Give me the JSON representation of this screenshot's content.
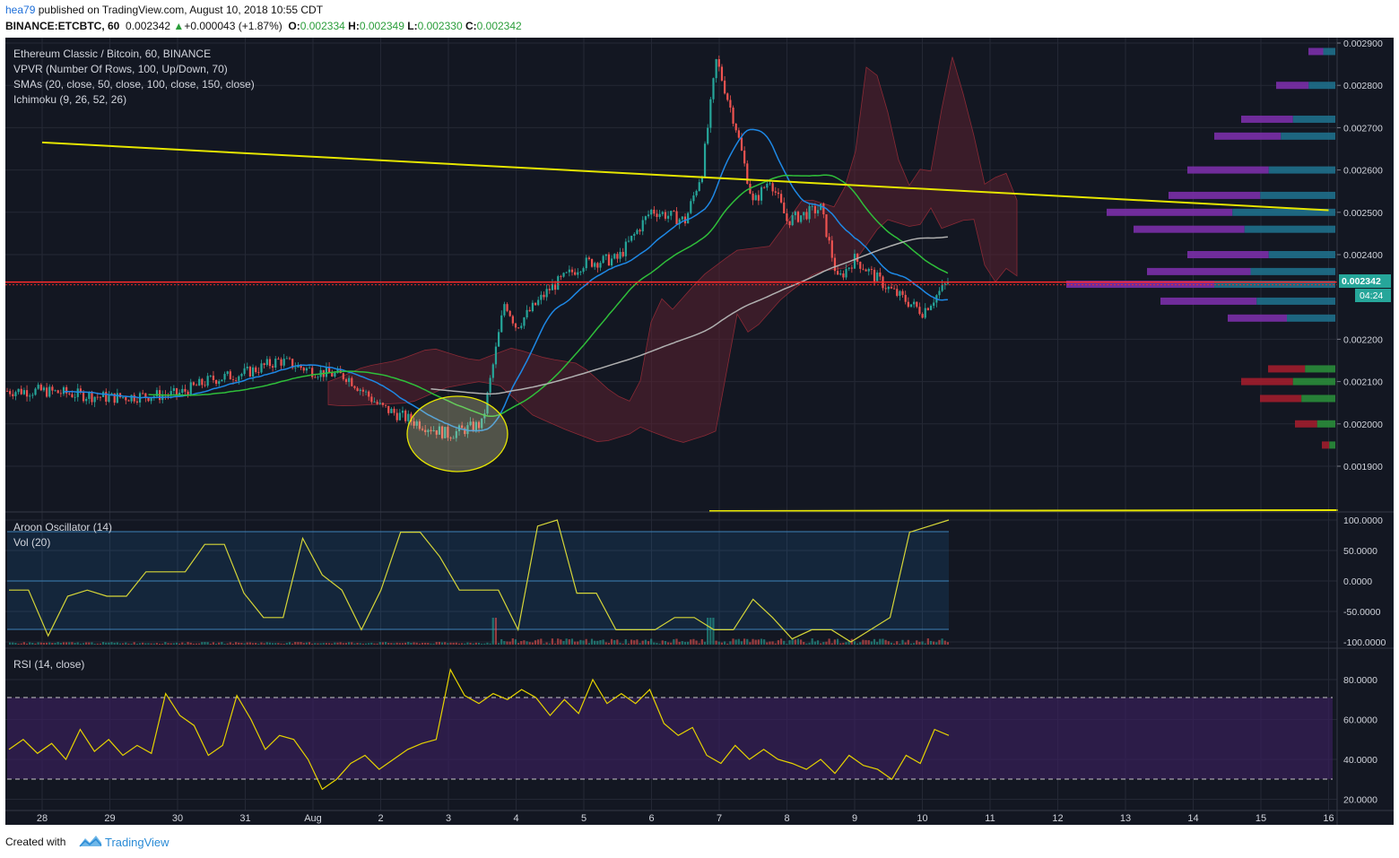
{
  "header": {
    "user": "hea79",
    "published": "published on TradingView.com, August 10, 2018 10:55 CDT",
    "symbol": "BINANCE:ETCBTC, 60",
    "last": "0.002342",
    "change": "+0.000043 (+1.87%)",
    "o_label": "O:",
    "o": "0.002334",
    "h_label": "H:",
    "h": "0.002349",
    "l_label": "L:",
    "l": "0.002330",
    "c_label": "C:",
    "c": "0.002342"
  },
  "legend": {
    "title": "Ethereum Classic / Bitcoin, 60, BINANCE",
    "vpvr": "VPVR (Number Of Rows, 100, Up/Down, 70)",
    "smas": "SMAs (20, close, 50, close, 100, close, 150, close)",
    "ichimoku": "Ichimoku (9, 26, 52, 26)",
    "aroon": "Aroon Oscillator (14)",
    "vol": "Vol (20)",
    "rsi": "RSI (14, close)"
  },
  "price_tag": {
    "price": "0.002342",
    "countdown": "04:24"
  },
  "footer": {
    "created_with": "Created with",
    "brand": "TradingView"
  },
  "colors": {
    "background": "#131722",
    "trendline": "#e6e600",
    "horizontal_line": "#ff2b2b",
    "up": "#26a69a",
    "down": "#ef5350",
    "rsi_band": "#3b1f5e"
  },
  "chart_data": [
    {
      "type": "candlestick",
      "panel": "price",
      "ylim": [
        0.00186,
        0.00291
      ],
      "yticks": [
        "0.002900",
        "0.002800",
        "0.002700",
        "0.002600",
        "0.002500",
        "0.002400",
        "0.002200",
        "0.002100",
        "0.002000",
        "0.001900"
      ],
      "x_ticks": [
        "28",
        "29",
        "30",
        "31",
        "Aug",
        "2",
        "3",
        "4",
        "5",
        "6",
        "7",
        "8",
        "9",
        "10",
        "11",
        "12",
        "13",
        "14",
        "15",
        "16"
      ],
      "close_path": [
        {
          "x": "Jul 28 00:00",
          "y": 0.002078
        },
        {
          "x": "Jul 29 00:00",
          "y": 0.002062
        },
        {
          "x": "Jul 30 00:00",
          "y": 0.00207
        },
        {
          "x": "Jul 30 12:00",
          "y": 0.002105
        },
        {
          "x": "Jul 31 00:00",
          "y": 0.00212
        },
        {
          "x": "Jul 31 12:00",
          "y": 0.00215
        },
        {
          "x": "Aug 1 00:00",
          "y": 0.002125
        },
        {
          "x": "Aug 1 12:00",
          "y": 0.002112
        },
        {
          "x": "Aug 2 00:00",
          "y": 0.00204
        },
        {
          "x": "Aug 2 12:00",
          "y": 0.002005
        },
        {
          "x": "Aug 3 00:00",
          "y": 0.001975
        },
        {
          "x": "Aug 3 12:00",
          "y": 0.002
        },
        {
          "x": "Aug 3 20:00",
          "y": 0.00229
        },
        {
          "x": "Aug 4 00:00",
          "y": 0.00223
        },
        {
          "x": "Aug 4 12:00",
          "y": 0.00232
        },
        {
          "x": "Aug 5 00:00",
          "y": 0.00238
        },
        {
          "x": "Aug 5 12:00",
          "y": 0.00239
        },
        {
          "x": "Aug 6 00:00",
          "y": 0.002505
        },
        {
          "x": "Aug 6 12:00",
          "y": 0.00248
        },
        {
          "x": "Aug 6 18:00",
          "y": 0.0026
        },
        {
          "x": "Aug 6 23:00",
          "y": 0.00286
        },
        {
          "x": "Aug 7 06:00",
          "y": 0.0027
        },
        {
          "x": "Aug 7 12:00",
          "y": 0.00252
        },
        {
          "x": "Aug 7 18:00",
          "y": 0.00258
        },
        {
          "x": "Aug 8 00:00",
          "y": 0.00248
        },
        {
          "x": "Aug 8 12:00",
          "y": 0.00251
        },
        {
          "x": "Aug 8 18:00",
          "y": 0.00234
        },
        {
          "x": "Aug 9 00:00",
          "y": 0.00239
        },
        {
          "x": "Aug 9 12:00",
          "y": 0.00232
        },
        {
          "x": "Aug 10 00:00",
          "y": 0.002265
        },
        {
          "x": "Aug 10 10:00",
          "y": 0.002342
        }
      ],
      "trendline": {
        "from": {
          "x": "Jul 28 00:00",
          "y": 0.002665
        },
        "to": {
          "x": "Aug 16 00:00",
          "y": 0.002505
        }
      },
      "horizontal_line": 0.002335,
      "volume_profile": [
        {
          "price": 0.00288,
          "volume": 0.1
        },
        {
          "price": 0.0028,
          "volume": 0.22
        },
        {
          "price": 0.00272,
          "volume": 0.35
        },
        {
          "price": 0.00268,
          "volume": 0.45
        },
        {
          "price": 0.0026,
          "volume": 0.55
        },
        {
          "price": 0.00254,
          "volume": 0.62
        },
        {
          "price": 0.0025,
          "volume": 0.85
        },
        {
          "price": 0.00246,
          "volume": 0.75
        },
        {
          "price": 0.0024,
          "volume": 0.55
        },
        {
          "price": 0.00236,
          "volume": 0.7
        },
        {
          "price": 0.00233,
          "volume": 1.0
        },
        {
          "price": 0.00229,
          "volume": 0.65
        },
        {
          "price": 0.00225,
          "volume": 0.4
        },
        {
          "price": 0.00213,
          "volume": 0.25
        },
        {
          "price": 0.0021,
          "volume": 0.35
        },
        {
          "price": 0.00206,
          "volume": 0.28
        },
        {
          "price": 0.002,
          "volume": 0.15
        },
        {
          "price": 0.00195,
          "volume": 0.05
        }
      ]
    },
    {
      "type": "line",
      "panel": "aroon",
      "ylim": [
        -100,
        100
      ],
      "yticks": [
        "100.0000",
        "50.0000",
        "0.0000",
        "-50.0000",
        "-100.0000"
      ],
      "series": [
        {
          "values": [
            -15,
            -15,
            -90,
            -25,
            -15,
            -25,
            -25,
            15,
            15,
            15,
            60,
            60,
            -20,
            -60,
            -60,
            70,
            10,
            -15,
            -80,
            -15,
            80,
            80,
            40,
            -15,
            -15,
            -15,
            -80,
            90,
            100,
            -20,
            -20,
            -80,
            -80,
            -80,
            -60,
            -60,
            -80,
            -80,
            -30,
            -60,
            -95,
            -80,
            -80,
            -100,
            -80,
            -60,
            80,
            90,
            100
          ]
        }
      ]
    },
    {
      "type": "line",
      "panel": "rsi",
      "ylim": [
        15,
        92
      ],
      "yticks": [
        "80.0000",
        "60.0000",
        "40.0000",
        "20.0000"
      ],
      "bands": [
        30,
        70
      ],
      "series": [
        {
          "values": [
            45,
            50,
            43,
            48,
            40,
            55,
            44,
            50,
            42,
            47,
            43,
            73,
            62,
            57,
            42,
            47,
            72,
            60,
            45,
            52,
            50,
            40,
            25,
            30,
            38,
            42,
            35,
            40,
            45,
            48,
            50,
            85,
            72,
            68,
            73,
            70,
            75,
            71,
            62,
            70,
            63,
            80,
            68,
            73,
            68,
            75,
            58,
            52,
            56,
            42,
            38,
            47,
            40,
            45,
            40,
            38,
            35,
            40,
            33,
            42,
            37,
            35,
            30,
            42,
            38,
            55,
            52
          ]
        }
      ]
    }
  ]
}
